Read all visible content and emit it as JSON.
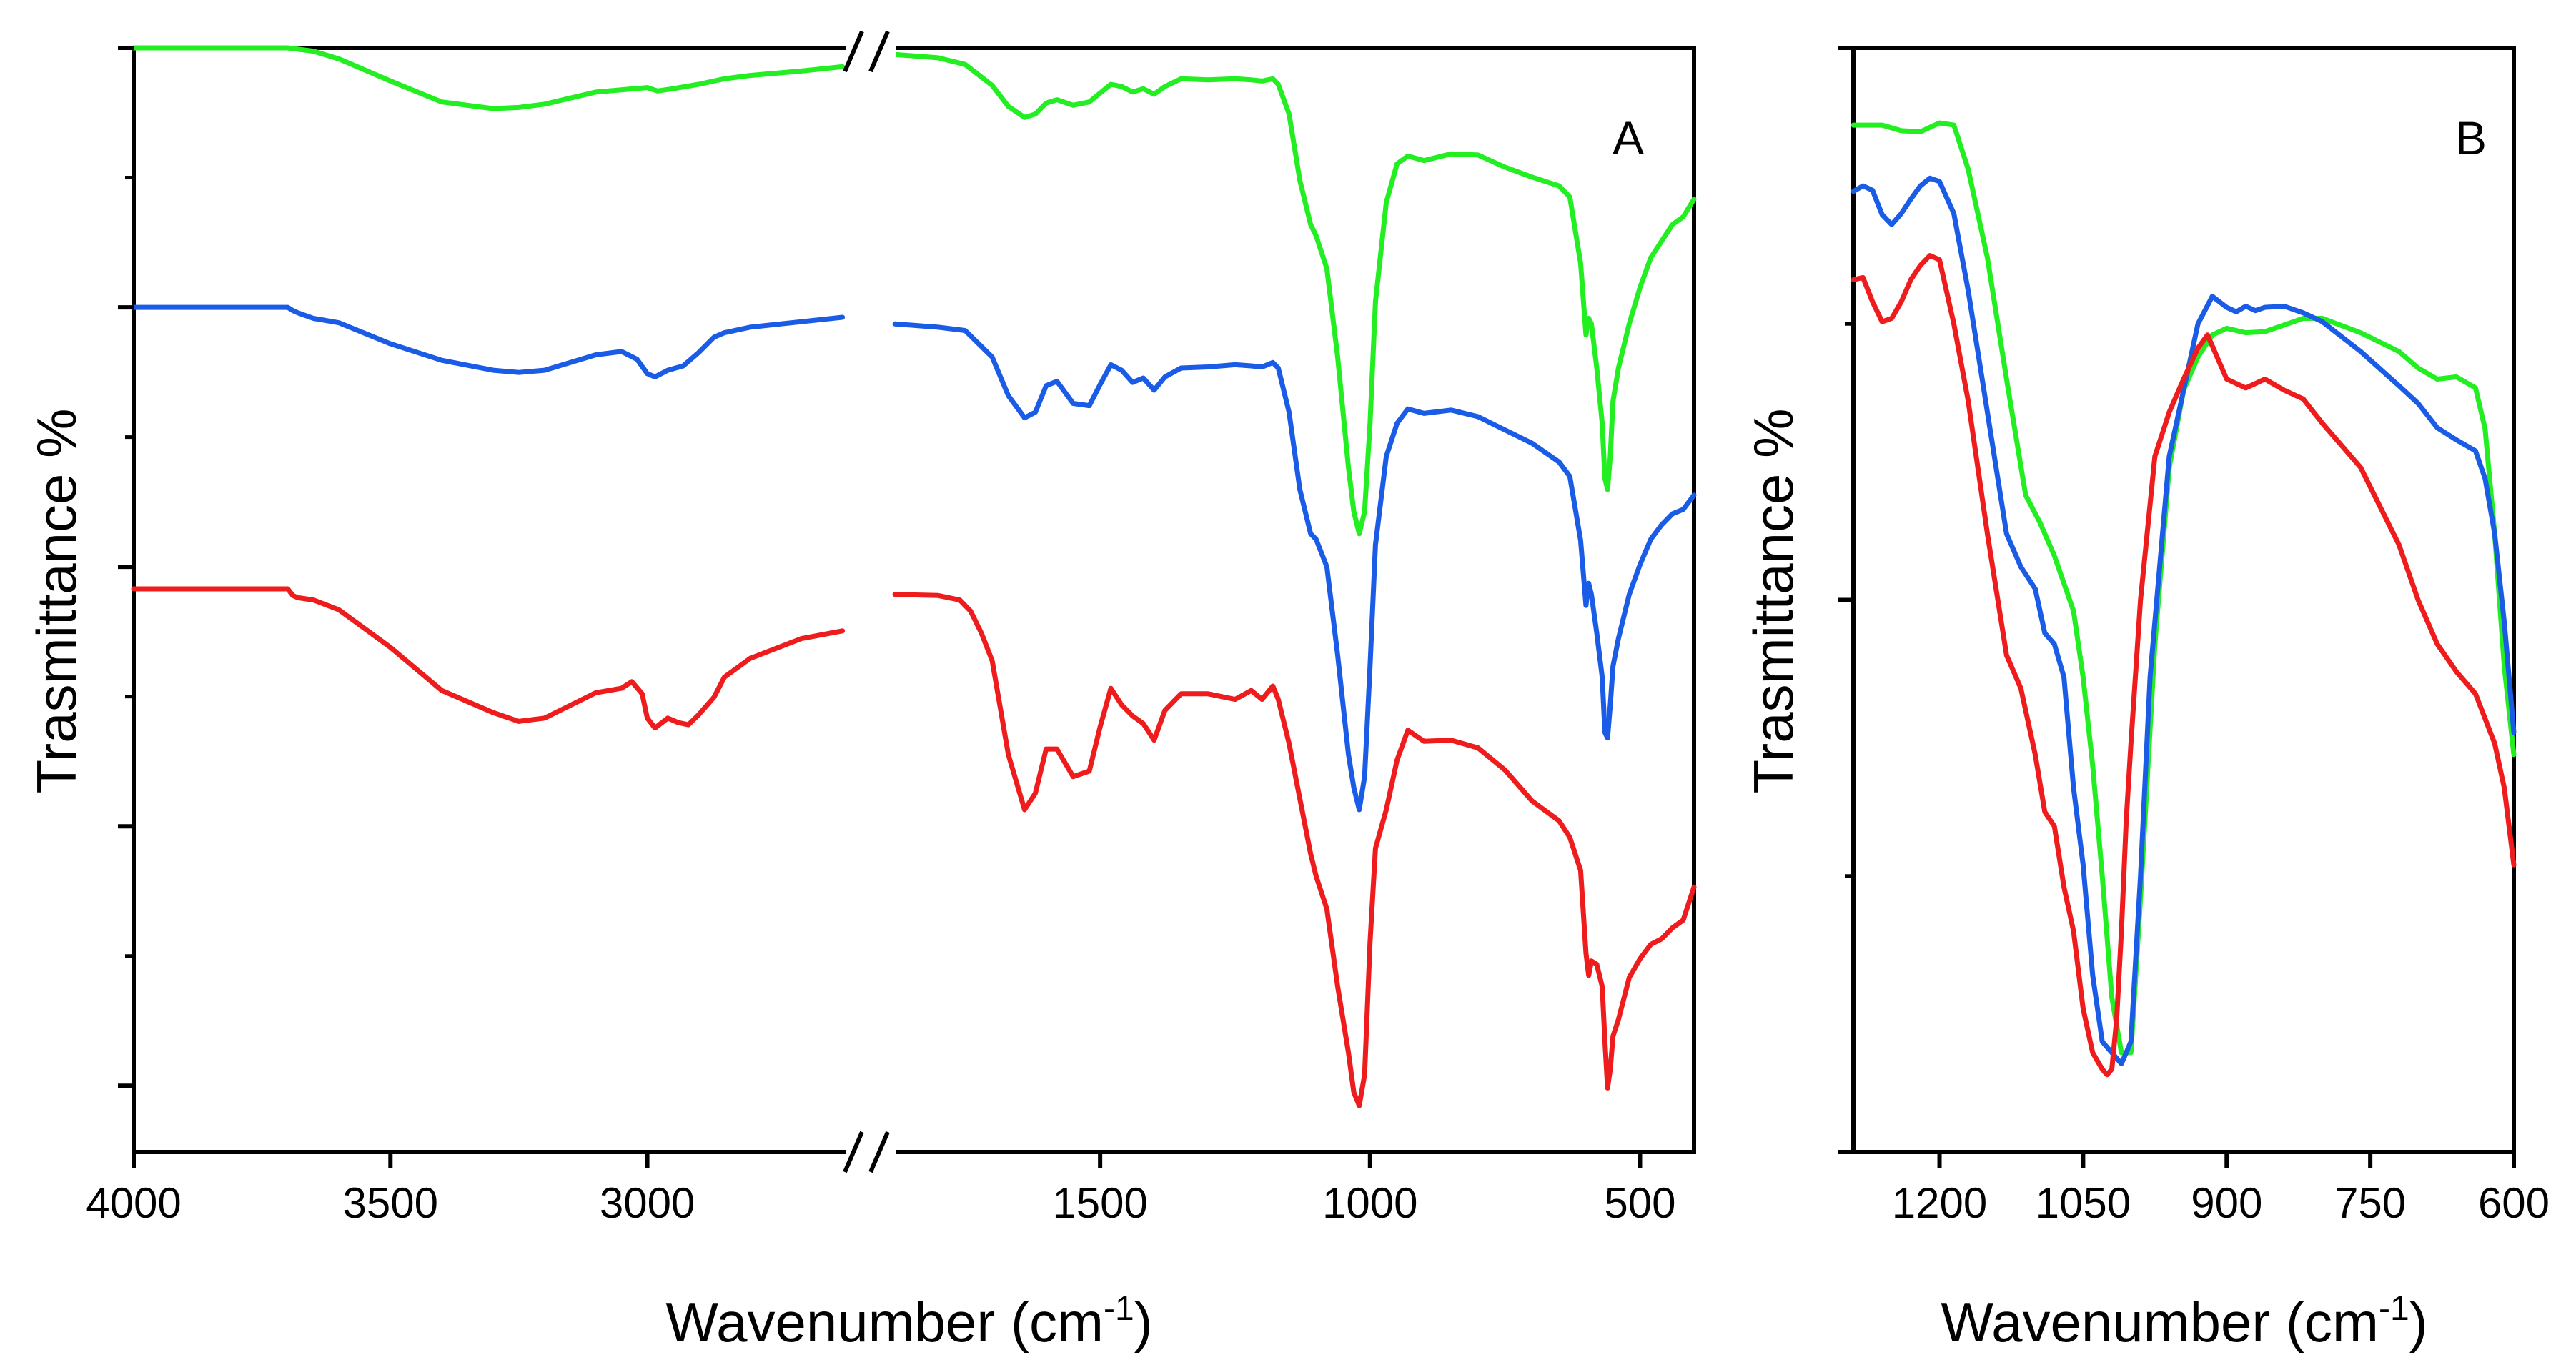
{
  "chart_data": [
    {
      "panel": "A",
      "type": "line",
      "panel_label": "A",
      "xlabel_main": "Wavenumber (cm",
      "xlabel_sup": "-1",
      "xlabel_close": ")",
      "ylabel": "Trasmittance %",
      "x_reversed": true,
      "x_segments": [
        {
          "range": [
            4000,
            2600
          ]
        },
        {
          "range": [
            1900,
            400
          ]
        }
      ],
      "break_mark": "//",
      "xticks": [
        {
          "value": 4000,
          "label": "4000",
          "seg": 0
        },
        {
          "value": 3500,
          "label": "3500",
          "seg": 0
        },
        {
          "value": 3000,
          "label": "3000",
          "seg": 0
        },
        {
          "value": 1500,
          "label": "1500",
          "seg": 1
        },
        {
          "value": 1000,
          "label": "1000",
          "seg": 1
        },
        {
          "value": 500,
          "label": "500",
          "seg": 1
        }
      ],
      "ylim": [
        0,
        100
      ],
      "yticks_major": [
        100,
        76.5,
        53,
        29.5,
        6
      ],
      "yticks_minor": [
        88.25,
        64.75,
        41.25,
        17.75
      ],
      "series": [
        {
          "name": "green",
          "color": "#22ee22",
          "x": [
            4000,
            3800,
            3700,
            3650,
            3600,
            3500,
            3400,
            3300,
            3250,
            3200,
            3100,
            3000,
            2980,
            2950,
            2900,
            2850,
            2800,
            2700,
            2620,
            1880,
            1800,
            1750,
            1700,
            1670,
            1640,
            1620,
            1600,
            1580,
            1550,
            1520,
            1500,
            1480,
            1460,
            1440,
            1420,
            1400,
            1380,
            1350,
            1300,
            1250,
            1220,
            1200,
            1180,
            1170,
            1150,
            1130,
            1110,
            1100,
            1080,
            1060,
            1040,
            1030,
            1020,
            1010,
            1000,
            990,
            970,
            950,
            930,
            900,
            850,
            800,
            750,
            700,
            650,
            630,
            610,
            600,
            595,
            590,
            580,
            570,
            565,
            560,
            555,
            550,
            540,
            520,
            500,
            480,
            460,
            440,
            420,
            400
          ],
          "y": [
            100,
            100,
            100,
            99.7,
            99,
            97,
            95.1,
            94.5,
            94.6,
            94.9,
            96,
            96.4,
            96.1,
            96.3,
            96.7,
            97.2,
            97.5,
            97.9,
            98.3,
            99.4,
            99.1,
            98.5,
            96.6,
            94.7,
            93.7,
            94,
            95,
            95.3,
            94.8,
            95.1,
            95.9,
            96.7,
            96.5,
            96,
            96.3,
            95.8,
            96.5,
            97.2,
            97.1,
            97.2,
            97.1,
            97,
            97.2,
            96.7,
            94,
            88,
            84,
            83,
            80,
            72,
            62,
            58,
            56,
            58,
            66,
            77,
            86,
            89.5,
            90.2,
            89.8,
            90.4,
            90.3,
            89.2,
            88.3,
            87.5,
            86.5,
            80.5,
            74,
            75.5,
            75,
            71,
            66,
            61,
            60,
            63,
            68,
            71,
            75,
            78.3,
            81,
            82.5,
            84,
            84.7,
            86.3
          ]
        },
        {
          "name": "blue",
          "color": "#1a5ce6",
          "x": [
            4000,
            3800,
            3700,
            3690,
            3680,
            3650,
            3600,
            3500,
            3400,
            3300,
            3250,
            3200,
            3100,
            3050,
            3020,
            3000,
            2985,
            2960,
            2930,
            2900,
            2870,
            2850,
            2800,
            2700,
            2620,
            1880,
            1800,
            1750,
            1700,
            1670,
            1640,
            1620,
            1600,
            1580,
            1550,
            1520,
            1500,
            1480,
            1460,
            1440,
            1420,
            1400,
            1380,
            1350,
            1300,
            1250,
            1220,
            1200,
            1180,
            1170,
            1150,
            1130,
            1110,
            1100,
            1080,
            1060,
            1040,
            1030,
            1020,
            1010,
            1000,
            990,
            970,
            950,
            930,
            900,
            850,
            800,
            750,
            700,
            650,
            630,
            610,
            600,
            595,
            590,
            580,
            570,
            565,
            560,
            555,
            550,
            540,
            520,
            500,
            480,
            460,
            440,
            420,
            400
          ],
          "y": [
            76.5,
            76.5,
            76.5,
            76.2,
            76,
            75.5,
            75.1,
            73.2,
            71.7,
            70.8,
            70.6,
            70.8,
            72.2,
            72.5,
            71.8,
            70.5,
            70.2,
            70.8,
            71.2,
            72.4,
            73.8,
            74.2,
            74.7,
            75.2,
            75.6,
            75,
            74.7,
            74.4,
            72,
            68.5,
            66.5,
            67,
            69.4,
            69.8,
            67.8,
            67.6,
            69.5,
            71.3,
            70.8,
            69.7,
            70.1,
            69,
            70.2,
            71,
            71.1,
            71.3,
            71.2,
            71.1,
            71.5,
            71,
            67,
            60,
            56,
            55.5,
            53,
            45,
            36,
            33,
            31,
            34,
            44,
            55,
            63,
            66,
            67.3,
            66.9,
            67.2,
            66.6,
            65.4,
            64.2,
            62.5,
            61.2,
            55.4,
            49.5,
            51.5,
            50.5,
            47,
            43,
            38,
            37.5,
            40.5,
            44,
            46.5,
            50.5,
            53.2,
            55.5,
            56.8,
            57.8,
            58.2,
            59.5
          ]
        },
        {
          "name": "red",
          "color": "#ee1c1c",
          "x": [
            4000,
            3800,
            3700,
            3690,
            3680,
            3650,
            3600,
            3500,
            3400,
            3300,
            3250,
            3200,
            3100,
            3050,
            3030,
            3010,
            3000,
            2985,
            2960,
            2940,
            2920,
            2900,
            2870,
            2850,
            2800,
            2700,
            2620,
            1880,
            1800,
            1760,
            1740,
            1720,
            1700,
            1670,
            1640,
            1620,
            1600,
            1580,
            1550,
            1520,
            1500,
            1480,
            1460,
            1440,
            1420,
            1400,
            1380,
            1350,
            1300,
            1250,
            1220,
            1200,
            1180,
            1170,
            1150,
            1130,
            1110,
            1100,
            1080,
            1060,
            1040,
            1030,
            1020,
            1010,
            1000,
            990,
            970,
            950,
            930,
            900,
            850,
            800,
            750,
            700,
            650,
            630,
            610,
            600,
            595,
            590,
            580,
            570,
            565,
            560,
            555,
            550,
            540,
            520,
            500,
            480,
            460,
            440,
            420,
            400
          ],
          "y": [
            51,
            51,
            51,
            50.4,
            50.2,
            50,
            49.1,
            45.7,
            41.8,
            39.8,
            39,
            39.3,
            41.6,
            42,
            42.6,
            41.5,
            39.3,
            38.4,
            39.3,
            38.9,
            38.7,
            39.6,
            41.2,
            43,
            44.7,
            46.5,
            47.2,
            50.5,
            50.4,
            50,
            49,
            47,
            44.5,
            36,
            31,
            32.5,
            36.5,
            36.5,
            34,
            34.5,
            38.5,
            42,
            40.5,
            39.5,
            38.8,
            37.3,
            40,
            41.5,
            41.5,
            41,
            41.8,
            41,
            42.2,
            41,
            37,
            32,
            27,
            25,
            22,
            15,
            9,
            5.4,
            4.2,
            7,
            19,
            27.5,
            31,
            35.5,
            38.2,
            37.2,
            37.3,
            36.6,
            34.6,
            31.8,
            30,
            28.5,
            25.5,
            18,
            16,
            17.3,
            17,
            15,
            10,
            5.8,
            7.5,
            10.5,
            12,
            15.8,
            17.5,
            18.8,
            19.3,
            20.3,
            21,
            24
          ]
        }
      ]
    },
    {
      "panel": "B",
      "type": "line",
      "panel_label": "B",
      "xlabel_main": "Wavenumber (cm",
      "xlabel_sup": "-1",
      "xlabel_close": ")",
      "ylabel": "Trasmittance %",
      "x_reversed": true,
      "xlim": [
        1290,
        600
      ],
      "xticks": [
        {
          "value": 1200,
          "label": "1200"
        },
        {
          "value": 1050,
          "label": "1050"
        },
        {
          "value": 900,
          "label": "900"
        },
        {
          "value": 750,
          "label": "750"
        },
        {
          "value": 600,
          "label": "600"
        }
      ],
      "ylim": [
        0,
        100
      ],
      "yticks_major": [
        100,
        50,
        0
      ],
      "yticks_minor": [
        75,
        25
      ],
      "series": [
        {
          "name": "green",
          "color": "#22ee22",
          "x": [
            1290,
            1260,
            1240,
            1220,
            1200,
            1185,
            1170,
            1150,
            1130,
            1110,
            1095,
            1080,
            1060,
            1050,
            1040,
            1030,
            1020,
            1010,
            1000,
            990,
            975,
            960,
            945,
            930,
            915,
            900,
            880,
            860,
            840,
            820,
            800,
            760,
            720,
            700,
            680,
            660,
            640,
            630,
            620,
            610,
            600
          ],
          "y": [
            93,
            93,
            92.5,
            92.4,
            93.2,
            93,
            89,
            81,
            70,
            59.5,
            57,
            54,
            49,
            43,
            35,
            25,
            14,
            9,
            9,
            23,
            46,
            62,
            69,
            72,
            74,
            74.6,
            74.2,
            74.3,
            74.9,
            75.5,
            75.5,
            74.2,
            72.5,
            71,
            70,
            70.2,
            69.2,
            65.5,
            56,
            44,
            36
          ]
        },
        {
          "name": "blue",
          "color": "#1a5ce6",
          "x": [
            1290,
            1280,
            1270,
            1260,
            1250,
            1240,
            1230,
            1220,
            1210,
            1200,
            1185,
            1170,
            1150,
            1130,
            1115,
            1100,
            1090,
            1080,
            1070,
            1060,
            1050,
            1040,
            1030,
            1020,
            1010,
            1005,
            1000,
            990,
            980,
            960,
            945,
            930,
            915,
            900,
            890,
            880,
            870,
            860,
            840,
            820,
            800,
            760,
            720,
            700,
            680,
            660,
            640,
            630,
            620,
            610,
            600
          ],
          "y": [
            87,
            87.5,
            87.1,
            84.9,
            84,
            85,
            86.3,
            87.5,
            88.2,
            87.9,
            85,
            78,
            67,
            56,
            53,
            51,
            47,
            46,
            43,
            33,
            26,
            16,
            10,
            9,
            8,
            9,
            10,
            25,
            43,
            63,
            69,
            75,
            77.5,
            76.5,
            76.1,
            76.6,
            76.2,
            76.5,
            76.6,
            76,
            75.2,
            72.5,
            69.4,
            67.8,
            65.6,
            64.5,
            63.5,
            61,
            56,
            48,
            38
          ]
        },
        {
          "name": "red",
          "color": "#ee1c1c",
          "x": [
            1290,
            1280,
            1270,
            1260,
            1250,
            1240,
            1230,
            1220,
            1210,
            1200,
            1185,
            1170,
            1150,
            1130,
            1115,
            1105,
            1100,
            1090,
            1080,
            1070,
            1060,
            1050,
            1040,
            1030,
            1025,
            1020,
            1015,
            1010,
            1005,
            1000,
            990,
            975,
            960,
            945,
            930,
            920,
            900,
            880,
            860,
            840,
            820,
            800,
            760,
            720,
            700,
            680,
            660,
            640,
            620,
            610,
            600
          ],
          "y": [
            79,
            79.2,
            77,
            75.2,
            75.5,
            77,
            79,
            80.3,
            81.2,
            80.8,
            75,
            68,
            56,
            45,
            42,
            38,
            36,
            30.8,
            29.5,
            24,
            20,
            13,
            9,
            7.5,
            7,
            7.5,
            12,
            20,
            30,
            37,
            50,
            63,
            67,
            70,
            72.8,
            74,
            70,
            69.2,
            70,
            69,
            68.2,
            66,
            62,
            55,
            50,
            46,
            43.5,
            41.5,
            37,
            33,
            26
          ]
        }
      ]
    }
  ]
}
